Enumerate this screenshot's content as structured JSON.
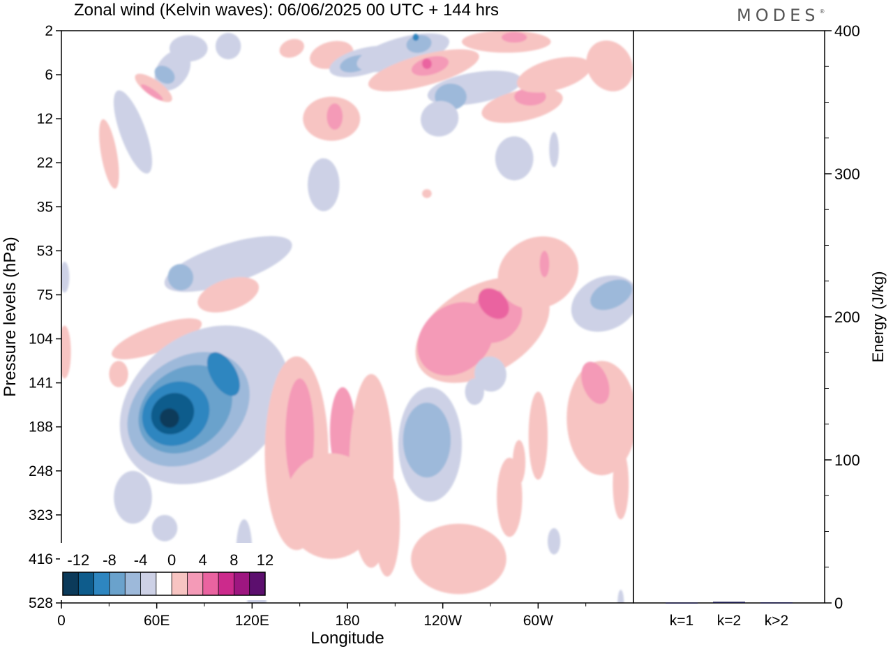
{
  "brand": "MODES",
  "chart_data": [
    {
      "type": "heatmap",
      "title": "Zonal wind (Kelvin waves):  06/06/2025  00 UTC  + 144 hrs",
      "xlabel": "Longitude",
      "ylabel": "Pressure levels (hPa)",
      "x_ticks": [
        "0",
        "60E",
        "120E",
        "180",
        "120W",
        "60W"
      ],
      "x_tick_values": [
        0,
        60,
        120,
        180,
        240,
        300
      ],
      "xlim": [
        0,
        360
      ],
      "y_ticks": [
        "2",
        "6",
        "12",
        "22",
        "35",
        "53",
        "75",
        "104",
        "141",
        "188",
        "248",
        "323",
        "416",
        "528"
      ],
      "y_scale": "level index (log-like pressure)",
      "colorbar": {
        "tick_labels": [
          "-12",
          "-8",
          "-4",
          "0",
          "4",
          "8",
          "12"
        ],
        "levels": [
          -14,
          -12,
          -10,
          -8,
          -6,
          -4,
          -2,
          2,
          4,
          6,
          8,
          10,
          12,
          14
        ],
        "colors": [
          "#0b3a5a",
          "#0e5c8c",
          "#2e86c0",
          "#6aa2cc",
          "#9db9da",
          "#cdd1e6",
          "#ffffff",
          "#f7c4c2",
          "#f49ab7",
          "#ea63a0",
          "#cc2a8c",
          "#9e1680",
          "#5c0f6e"
        ]
      },
      "features": [
        {
          "sign": "negative",
          "lon_center": 65,
          "level_center": 141,
          "peak": -12
        },
        {
          "sign": "negative",
          "lon_center": 105,
          "level_center": 141,
          "peak": -8
        },
        {
          "sign": "negative",
          "lon_center": 225,
          "level_center": 188,
          "peak": -4
        },
        {
          "sign": "negative",
          "lon_center": 340,
          "level_center": 75,
          "peak": -4
        },
        {
          "sign": "positive",
          "lon_center": 150,
          "level_center": 188,
          "peak": 4
        },
        {
          "sign": "positive",
          "lon_center": 275,
          "level_center": 75,
          "peak": 8
        },
        {
          "sign": "positive",
          "lon_center": 335,
          "level_center": 141,
          "peak": 6
        }
      ]
    },
    {
      "type": "bar",
      "categories": [
        "k=1",
        "k=2",
        "k>2"
      ],
      "values": [
        0.3,
        0.8,
        0.4
      ],
      "ylabel": "Energy (J/kg)",
      "ylim": [
        0,
        400
      ],
      "y_ticks": [
        0,
        100,
        200,
        300,
        400
      ]
    }
  ]
}
